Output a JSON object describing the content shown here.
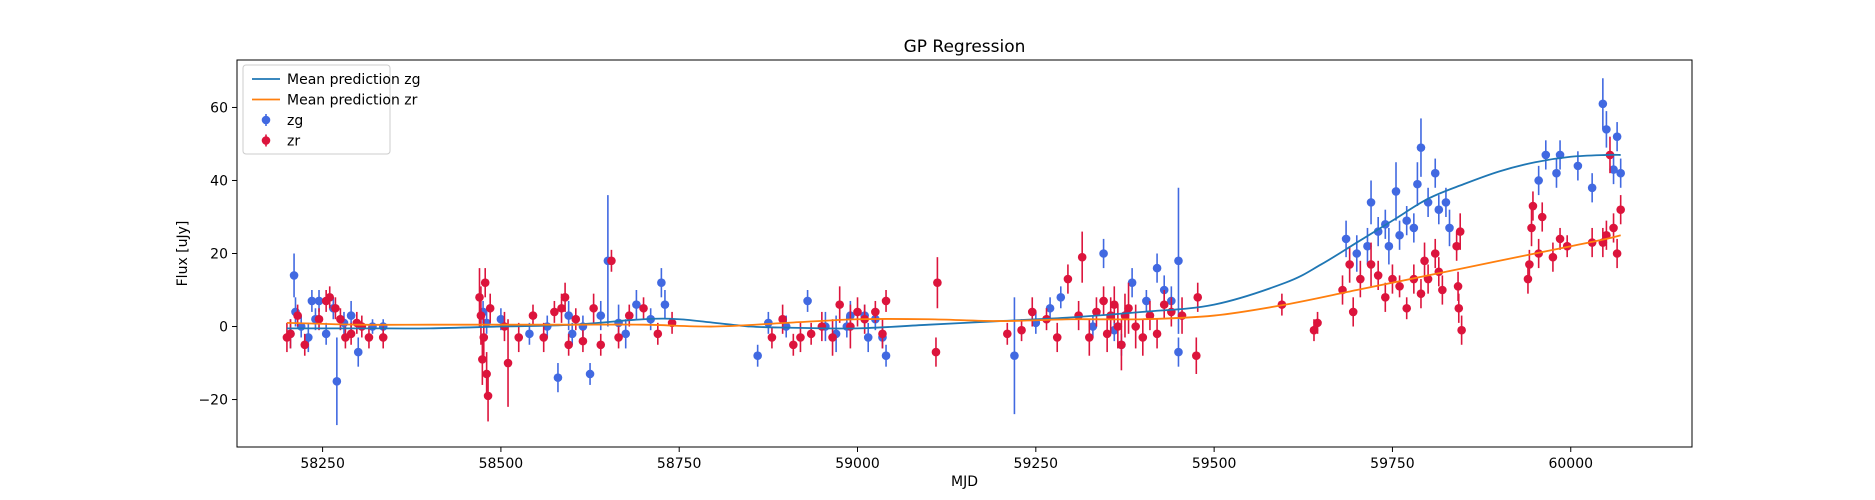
{
  "chart_data": {
    "type": "scatter",
    "title": "GP Regression",
    "xlabel": "MJD",
    "ylabel": "Flux [uJy]",
    "xlim": [
      58130,
      60170
    ],
    "ylim": [
      -33,
      73
    ],
    "xticks": [
      58250,
      58500,
      58750,
      59000,
      59250,
      59500,
      59750,
      60000
    ],
    "yticks": [
      -20,
      0,
      20,
      40,
      60
    ],
    "grid": false,
    "legend_position": "top-left",
    "lines": [
      {
        "name": "Mean prediction zg",
        "color": "#1f77b4",
        "x": [
          58200,
          58300,
          58400,
          58500,
          58600,
          58700,
          58750,
          58800,
          58850,
          58900,
          59000,
          59100,
          59200,
          59300,
          59400,
          59500,
          59600,
          59650,
          59700,
          59750,
          59800,
          59850,
          59900,
          59950,
          60000,
          60050,
          60070
        ],
        "y": [
          -0.5,
          -0.5,
          -0.5,
          0,
          0.5,
          2,
          2,
          1,
          0,
          -0.3,
          -0.5,
          0.5,
          1.5,
          2.5,
          4,
          6,
          12,
          17,
          23,
          29,
          35,
          39,
          42.5,
          45,
          46.5,
          47,
          47
        ]
      },
      {
        "name": "Mean prediction zr",
        "color": "#ff7f0e",
        "x": [
          58200,
          58300,
          58400,
          58500,
          58600,
          58700,
          58800,
          58900,
          59000,
          59100,
          59200,
          59300,
          59400,
          59500,
          59600,
          59700,
          59800,
          59900,
          60000,
          60050,
          60070
        ],
        "y": [
          1,
          0.5,
          0.5,
          0.5,
          0.5,
          0.5,
          0,
          1,
          2,
          2,
          1.5,
          2,
          2,
          3,
          6,
          10,
          14,
          18,
          22,
          24,
          25
        ]
      }
    ],
    "series": [
      {
        "name": "zg",
        "color": "#4169e1",
        "points": [
          [
            58205,
            -2,
            4
          ],
          [
            58210,
            14,
            6
          ],
          [
            58212,
            4,
            4
          ],
          [
            58220,
            0,
            3
          ],
          [
            58230,
            -3,
            4
          ],
          [
            58235,
            7,
            3
          ],
          [
            58240,
            2,
            3
          ],
          [
            58245,
            7,
            3
          ],
          [
            58255,
            -2,
            3
          ],
          [
            58265,
            5,
            3
          ],
          [
            58270,
            -15,
            12
          ],
          [
            58280,
            1,
            3
          ],
          [
            58290,
            3,
            4
          ],
          [
            58300,
            -7,
            4
          ],
          [
            58320,
            0,
            2
          ],
          [
            58335,
            0,
            2
          ],
          [
            58475,
            4,
            3
          ],
          [
            58480,
            1,
            3
          ],
          [
            58500,
            2,
            3
          ],
          [
            58540,
            -2,
            3
          ],
          [
            58565,
            0,
            3
          ],
          [
            58580,
            -14,
            4
          ],
          [
            58595,
            3,
            4
          ],
          [
            58600,
            -2,
            3
          ],
          [
            58615,
            0,
            3
          ],
          [
            58625,
            -13,
            3
          ],
          [
            58640,
            3,
            4
          ],
          [
            58650,
            18,
            18
          ],
          [
            58665,
            1,
            5
          ],
          [
            58675,
            -2,
            4
          ],
          [
            58690,
            6,
            4
          ],
          [
            58710,
            2,
            3
          ],
          [
            58725,
            12,
            4
          ],
          [
            58730,
            6,
            4
          ],
          [
            58860,
            -8,
            3
          ],
          [
            58875,
            1,
            3
          ],
          [
            58900,
            0,
            3
          ],
          [
            58930,
            7,
            3
          ],
          [
            58955,
            0,
            4
          ],
          [
            58970,
            -2,
            5
          ],
          [
            58985,
            0,
            3
          ],
          [
            58990,
            3,
            4
          ],
          [
            59010,
            3,
            3
          ],
          [
            59015,
            -3,
            4
          ],
          [
            59025,
            2,
            3
          ],
          [
            59035,
            -3,
            3
          ],
          [
            59040,
            -8,
            3
          ],
          [
            59220,
            -8,
            16
          ],
          [
            59250,
            1,
            3
          ],
          [
            59270,
            5,
            3
          ],
          [
            59285,
            8,
            3
          ],
          [
            59330,
            0,
            3
          ],
          [
            59345,
            20,
            4
          ],
          [
            59360,
            -1,
            3
          ],
          [
            59370,
            -5,
            3
          ],
          [
            59385,
            12,
            4
          ],
          [
            59405,
            7,
            3
          ],
          [
            59420,
            16,
            4
          ],
          [
            59430,
            10,
            4
          ],
          [
            59440,
            7,
            4
          ],
          [
            59450,
            18,
            20
          ],
          [
            59450,
            -7,
            4
          ],
          [
            59685,
            24,
            5
          ],
          [
            59700,
            20,
            5
          ],
          [
            59715,
            22,
            5
          ],
          [
            59720,
            34,
            6
          ],
          [
            59730,
            26,
            4
          ],
          [
            59740,
            28,
            4
          ],
          [
            59745,
            22,
            5
          ],
          [
            59755,
            37,
            8
          ],
          [
            59760,
            25,
            4
          ],
          [
            59770,
            29,
            4
          ],
          [
            59780,
            27,
            4
          ],
          [
            59785,
            39,
            6
          ],
          [
            59790,
            49,
            8
          ],
          [
            59800,
            34,
            4
          ],
          [
            59810,
            42,
            4
          ],
          [
            59815,
            32,
            4
          ],
          [
            59825,
            34,
            4
          ],
          [
            59830,
            27,
            5
          ],
          [
            59955,
            40,
            4
          ],
          [
            59965,
            47,
            4
          ],
          [
            59980,
            42,
            4
          ],
          [
            59985,
            47,
            4
          ],
          [
            60010,
            44,
            4
          ],
          [
            60030,
            38,
            4
          ],
          [
            60045,
            61,
            7
          ],
          [
            60050,
            54,
            5
          ],
          [
            60060,
            43,
            4
          ],
          [
            60065,
            52,
            4
          ],
          [
            60070,
            42,
            4
          ]
        ]
      },
      {
        "name": "zr",
        "color": "#dc143c",
        "points": [
          [
            58200,
            -3,
            4
          ],
          [
            58205,
            -2,
            4
          ],
          [
            58215,
            3,
            3
          ],
          [
            58225,
            -5,
            3
          ],
          [
            58245,
            2,
            3
          ],
          [
            58255,
            7,
            3
          ],
          [
            58260,
            8,
            3
          ],
          [
            58268,
            5,
            3
          ],
          [
            58275,
            2,
            3
          ],
          [
            58282,
            -3,
            3
          ],
          [
            58290,
            -2,
            3
          ],
          [
            58298,
            1,
            3
          ],
          [
            58305,
            0,
            3
          ],
          [
            58315,
            -3,
            3
          ],
          [
            58335,
            -3,
            3
          ],
          [
            58470,
            8,
            8
          ],
          [
            58472,
            3,
            8
          ],
          [
            58474,
            -9,
            7
          ],
          [
            58476,
            -3,
            6
          ],
          [
            58478,
            12,
            4
          ],
          [
            58480,
            -13,
            6
          ],
          [
            58482,
            -19,
            7
          ],
          [
            58485,
            5,
            4
          ],
          [
            58505,
            0,
            4
          ],
          [
            58510,
            -10,
            12
          ],
          [
            58525,
            -3,
            4
          ],
          [
            58545,
            3,
            3
          ],
          [
            58560,
            -3,
            4
          ],
          [
            58575,
            4,
            3
          ],
          [
            58585,
            5,
            4
          ],
          [
            58590,
            8,
            4
          ],
          [
            58595,
            -5,
            3
          ],
          [
            58605,
            2,
            3
          ],
          [
            58615,
            -4,
            3
          ],
          [
            58630,
            5,
            4
          ],
          [
            58640,
            -5,
            3
          ],
          [
            58655,
            18,
            3
          ],
          [
            58665,
            -3,
            3
          ],
          [
            58680,
            3,
            3
          ],
          [
            58700,
            5,
            3
          ],
          [
            58720,
            -2,
            3
          ],
          [
            58740,
            1,
            3
          ],
          [
            58880,
            -3,
            3
          ],
          [
            58895,
            2,
            4
          ],
          [
            58910,
            -5,
            3
          ],
          [
            58920,
            -3,
            4
          ],
          [
            58935,
            -2,
            3
          ],
          [
            58950,
            0,
            4
          ],
          [
            58965,
            -3,
            5
          ],
          [
            58975,
            6,
            5
          ],
          [
            58990,
            0,
            6
          ],
          [
            59000,
            4,
            4
          ],
          [
            59010,
            2,
            4
          ],
          [
            59025,
            4,
            3
          ],
          [
            59035,
            -2,
            4
          ],
          [
            59040,
            7,
            3
          ],
          [
            59110,
            -7,
            4
          ],
          [
            59112,
            12,
            7
          ],
          [
            59210,
            -2,
            3
          ],
          [
            59230,
            -1,
            3
          ],
          [
            59245,
            4,
            4
          ],
          [
            59265,
            2,
            3
          ],
          [
            59280,
            -3,
            4
          ],
          [
            59295,
            13,
            4
          ],
          [
            59310,
            3,
            4
          ],
          [
            59315,
            19,
            7
          ],
          [
            59325,
            -3,
            5
          ],
          [
            59335,
            4,
            4
          ],
          [
            59345,
            7,
            4
          ],
          [
            59350,
            -2,
            5
          ],
          [
            59355,
            3,
            5
          ],
          [
            59360,
            6,
            5
          ],
          [
            59365,
            0,
            6
          ],
          [
            59370,
            -5,
            7
          ],
          [
            59375,
            3,
            6
          ],
          [
            59380,
            5,
            7
          ],
          [
            59390,
            0,
            6
          ],
          [
            59400,
            -3,
            5
          ],
          [
            59410,
            3,
            4
          ],
          [
            59420,
            -2,
            4
          ],
          [
            59430,
            6,
            4
          ],
          [
            59440,
            4,
            4
          ],
          [
            59455,
            3,
            5
          ],
          [
            59475,
            -8,
            5
          ],
          [
            59477,
            8,
            4
          ],
          [
            59595,
            6,
            3
          ],
          [
            59640,
            -1,
            3
          ],
          [
            59645,
            1,
            3
          ],
          [
            59680,
            10,
            4
          ],
          [
            59690,
            17,
            5
          ],
          [
            59695,
            4,
            4
          ],
          [
            59705,
            13,
            5
          ],
          [
            59720,
            17,
            6
          ],
          [
            59730,
            14,
            4
          ],
          [
            59740,
            8,
            4
          ],
          [
            59750,
            13,
            4
          ],
          [
            59760,
            11,
            3
          ],
          [
            59770,
            5,
            3
          ],
          [
            59780,
            13,
            4
          ],
          [
            59790,
            9,
            4
          ],
          [
            59795,
            18,
            5
          ],
          [
            59800,
            13,
            4
          ],
          [
            59810,
            20,
            4
          ],
          [
            59815,
            15,
            4
          ],
          [
            59820,
            10,
            4
          ],
          [
            59840,
            22,
            4
          ],
          [
            59845,
            26,
            5
          ],
          [
            59842,
            11,
            4
          ],
          [
            59843,
            5,
            4
          ],
          [
            59847,
            -1,
            4
          ],
          [
            59940,
            13,
            4
          ],
          [
            59942,
            17,
            4
          ],
          [
            59945,
            27,
            5
          ],
          [
            59947,
            33,
            4
          ],
          [
            59955,
            20,
            4
          ],
          [
            59960,
            30,
            4
          ],
          [
            59975,
            19,
            4
          ],
          [
            59985,
            24,
            3
          ],
          [
            59995,
            22,
            3
          ],
          [
            60030,
            23,
            4
          ],
          [
            60045,
            23,
            4
          ],
          [
            60050,
            25,
            4
          ],
          [
            60055,
            47,
            5
          ],
          [
            60060,
            27,
            4
          ],
          [
            60065,
            20,
            4
          ],
          [
            60070,
            32,
            4
          ]
        ]
      }
    ]
  }
}
